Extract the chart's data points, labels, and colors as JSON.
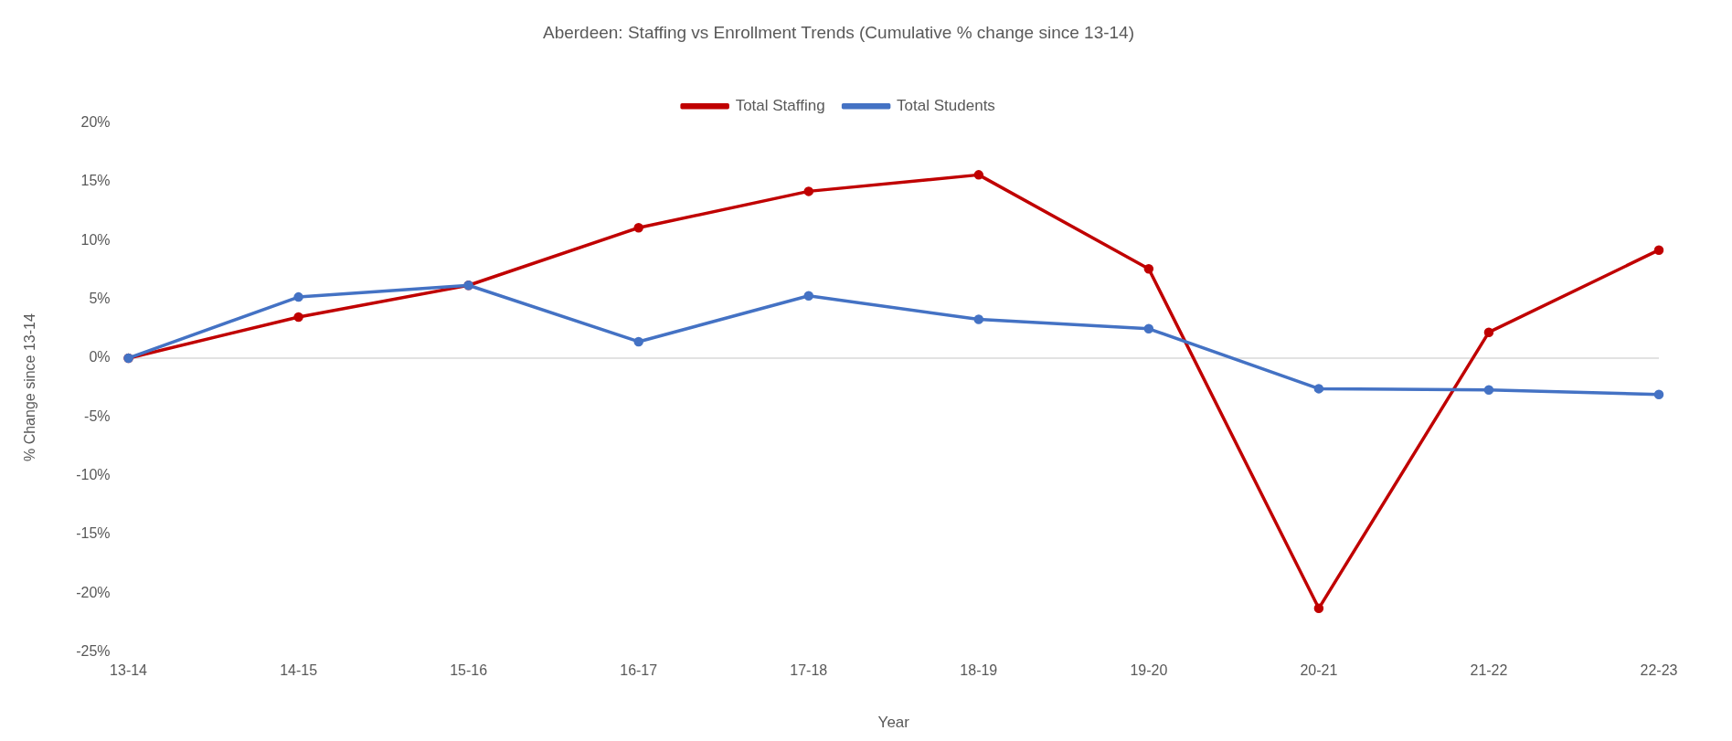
{
  "chart_data": {
    "type": "line",
    "title": "Aberdeen: Staffing vs Enrollment Trends (Cumulative % change since 13-14)",
    "xlabel": "Year",
    "ylabel": "% Change since 13-14",
    "categories": [
      "13-14",
      "14-15",
      "15-16",
      "16-17",
      "17-18",
      "18-19",
      "19-20",
      "20-21",
      "21-22",
      "22-23"
    ],
    "series": [
      {
        "name": "Total Staffing",
        "color": "#c00000",
        "values": [
          0,
          3.5,
          6.2,
          11.1,
          14.2,
          15.6,
          7.6,
          -21.3,
          2.2,
          9.2
        ]
      },
      {
        "name": "Total Students",
        "color": "#4472c4",
        "values": [
          0,
          5.2,
          6.2,
          1.4,
          5.3,
          3.3,
          2.5,
          -2.6,
          -2.7,
          -3.1
        ]
      }
    ],
    "ylim": [
      -25,
      20
    ],
    "yticks": [
      {
        "value": -25,
        "label": "-25%"
      },
      {
        "value": -20,
        "label": "-20%"
      },
      {
        "value": -15,
        "label": "-15%"
      },
      {
        "value": -10,
        "label": "-10%"
      },
      {
        "value": -5,
        "label": "-5%"
      },
      {
        "value": 0,
        "label": "0%"
      },
      {
        "value": 5,
        "label": "5%"
      },
      {
        "value": 10,
        "label": "10%"
      },
      {
        "value": 15,
        "label": "15%"
      },
      {
        "value": 20,
        "label": "20%"
      }
    ],
    "ref_lines": [
      {
        "axis": "y",
        "value": 0,
        "color": "#d9d9d9"
      }
    ],
    "grid": false,
    "legend": "top",
    "marker": "circle",
    "line_style": "solid"
  }
}
